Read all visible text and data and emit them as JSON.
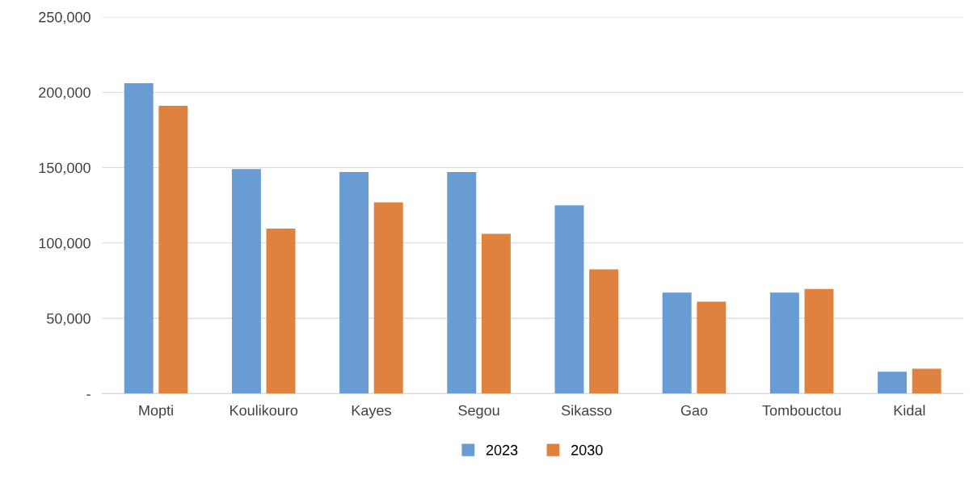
{
  "chart_data": {
    "type": "bar",
    "categories": [
      "Mopti",
      "Koulikouro",
      "Kayes",
      "Segou",
      "Sikasso",
      "Gao",
      "Tombouctou",
      "Kidal"
    ],
    "series": [
      {
        "name": "2023",
        "color": "#699cd2",
        "values": [
          206000,
          149000,
          147000,
          147000,
          125000,
          67000,
          67000,
          14500
        ]
      },
      {
        "name": "2030",
        "color": "#e0823f",
        "values": [
          191000,
          109500,
          127000,
          106000,
          82500,
          61000,
          69500,
          16500
        ]
      }
    ],
    "ylim": [
      0,
      250000
    ],
    "yticks": [
      {
        "value": 0,
        "label": "-"
      },
      {
        "value": 50000,
        "label": "50,000"
      },
      {
        "value": 100000,
        "label": "100,000"
      },
      {
        "value": 150000,
        "label": "150,000"
      },
      {
        "value": 200000,
        "label": "200,000"
      },
      {
        "value": 250000,
        "label": "250,000"
      }
    ],
    "grid": "y",
    "legend": "bottom"
  }
}
